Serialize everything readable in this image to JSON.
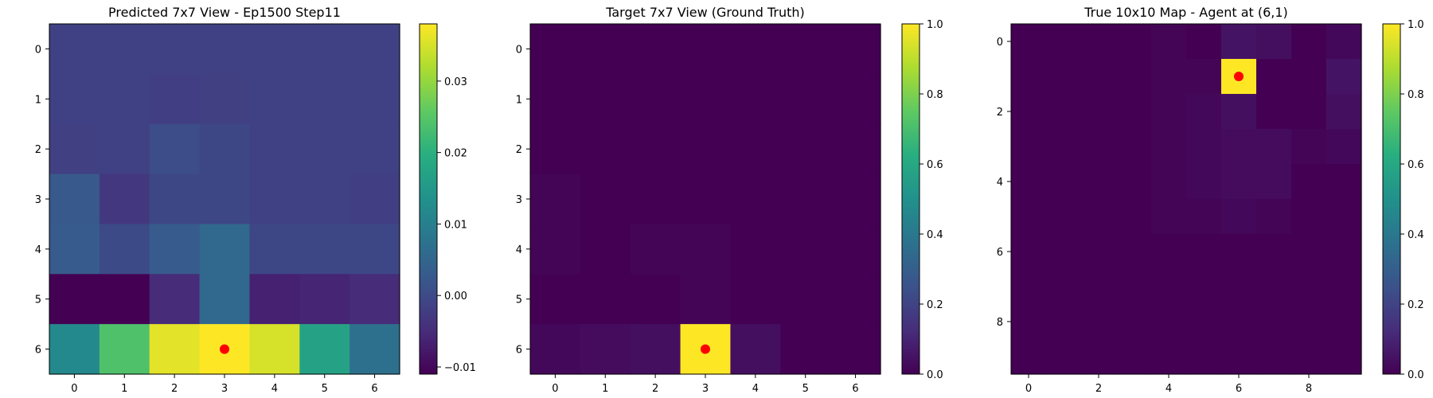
{
  "chart_data": [
    {
      "type": "heatmap",
      "title": "Predicted 7x7 View - Ep1500 Step11",
      "xlabel": "",
      "ylabel": "",
      "x_ticks": [
        "0",
        "1",
        "2",
        "3",
        "4",
        "5",
        "6"
      ],
      "y_ticks": [
        "0",
        "1",
        "2",
        "3",
        "4",
        "5",
        "6"
      ],
      "rows": 7,
      "cols": 7,
      "values": [
        [
          -0.0015,
          -0.0015,
          -0.0015,
          -0.0015,
          -0.0015,
          -0.0015,
          -0.0015
        ],
        [
          -0.0015,
          -0.0015,
          -0.002,
          -0.0018,
          -0.0015,
          -0.0015,
          -0.0015
        ],
        [
          -0.0018,
          -0.0015,
          0.0005,
          -0.0005,
          -0.0015,
          -0.0015,
          -0.0015
        ],
        [
          0.0025,
          -0.003,
          -0.0005,
          -0.0005,
          -0.0015,
          -0.0015,
          -0.002
        ],
        [
          0.003,
          0.0,
          0.003,
          0.0055,
          -0.0005,
          -0.0005,
          -0.0005
        ],
        [
          -0.011,
          -0.011,
          -0.005,
          0.0055,
          -0.0065,
          -0.006,
          -0.005
        ],
        [
          0.012,
          0.024,
          0.036,
          0.038,
          0.035,
          0.017,
          0.007
        ]
      ],
      "vmin": -0.011,
      "vmax": 0.038,
      "colorbar_ticks": [
        {
          "value": 0.03,
          "label": "0.03"
        },
        {
          "value": 0.02,
          "label": "0.02"
        },
        {
          "value": 0.01,
          "label": "0.01"
        },
        {
          "value": 0.0,
          "label": "0.00"
        },
        {
          "value": -0.01,
          "label": "−0.01"
        }
      ],
      "marker": {
        "x": 3,
        "y": 6,
        "color": "#ff0000"
      },
      "colormap": "viridis"
    },
    {
      "type": "heatmap",
      "title": "Target 7x7 View (Ground Truth)",
      "xlabel": "",
      "ylabel": "",
      "x_ticks": [
        "0",
        "1",
        "2",
        "3",
        "4",
        "5",
        "6"
      ],
      "y_ticks": [
        "0",
        "1",
        "2",
        "3",
        "4",
        "5",
        "6"
      ],
      "rows": 7,
      "cols": 7,
      "values": [
        [
          0.0,
          0.0,
          0.0,
          0.0,
          0.0,
          0.0,
          0.0
        ],
        [
          0.0,
          0.0,
          0.0,
          0.0,
          0.0,
          0.0,
          0.0
        ],
        [
          0.0,
          0.0,
          0.0,
          0.0,
          0.0,
          0.0,
          0.0
        ],
        [
          0.01,
          0.0,
          0.0,
          0.0,
          0.0,
          0.0,
          0.0
        ],
        [
          0.01,
          0.0,
          0.01,
          0.01,
          0.0,
          0.0,
          0.0
        ],
        [
          0.0,
          0.0,
          0.0,
          0.01,
          0.0,
          0.0,
          0.0
        ],
        [
          0.02,
          0.03,
          0.04,
          1.0,
          0.04,
          0.0,
          0.0
        ]
      ],
      "vmin": 0.0,
      "vmax": 1.0,
      "colorbar_ticks": [
        {
          "value": 1.0,
          "label": "1.0"
        },
        {
          "value": 0.8,
          "label": "0.8"
        },
        {
          "value": 0.6,
          "label": "0.6"
        },
        {
          "value": 0.4,
          "label": "0.4"
        },
        {
          "value": 0.2,
          "label": "0.2"
        },
        {
          "value": 0.0,
          "label": "0.0"
        }
      ],
      "marker": {
        "x": 3,
        "y": 6,
        "color": "#ff0000"
      },
      "colormap": "viridis"
    },
    {
      "type": "heatmap",
      "title": "True 10x10 Map - Agent at (6,1)",
      "xlabel": "",
      "ylabel": "",
      "x_ticks": [
        "0",
        "2",
        "4",
        "6",
        "8"
      ],
      "y_ticks": [
        "0",
        "2",
        "4",
        "6",
        "8"
      ],
      "rows": 10,
      "cols": 10,
      "values": [
        [
          0.0,
          0.0,
          0.0,
          0.0,
          0.01,
          0.0,
          0.05,
          0.04,
          0.0,
          0.02
        ],
        [
          0.0,
          0.0,
          0.0,
          0.0,
          0.01,
          0.01,
          1.0,
          0.0,
          0.0,
          0.05
        ],
        [
          0.0,
          0.0,
          0.0,
          0.0,
          0.01,
          0.02,
          0.04,
          0.0,
          0.0,
          0.04
        ],
        [
          0.0,
          0.0,
          0.0,
          0.0,
          0.01,
          0.02,
          0.03,
          0.03,
          0.01,
          0.02
        ],
        [
          0.0,
          0.0,
          0.0,
          0.0,
          0.01,
          0.02,
          0.03,
          0.03,
          0.0,
          0.0
        ],
        [
          0.0,
          0.0,
          0.0,
          0.0,
          0.01,
          0.01,
          0.02,
          0.01,
          0.0,
          0.0
        ],
        [
          0.0,
          0.0,
          0.0,
          0.0,
          0.0,
          0.0,
          0.0,
          0.0,
          0.0,
          0.0
        ],
        [
          0.0,
          0.0,
          0.0,
          0.0,
          0.0,
          0.0,
          0.0,
          0.0,
          0.0,
          0.0
        ],
        [
          0.0,
          0.0,
          0.0,
          0.0,
          0.0,
          0.0,
          0.0,
          0.0,
          0.0,
          0.0
        ],
        [
          0.0,
          0.0,
          0.0,
          0.0,
          0.0,
          0.0,
          0.0,
          0.0,
          0.0,
          0.0
        ]
      ],
      "vmin": 0.0,
      "vmax": 1.0,
      "colorbar_ticks": [
        {
          "value": 1.0,
          "label": "1.0"
        },
        {
          "value": 0.8,
          "label": "0.8"
        },
        {
          "value": 0.6,
          "label": "0.6"
        },
        {
          "value": 0.4,
          "label": "0.4"
        },
        {
          "value": 0.2,
          "label": "0.2"
        },
        {
          "value": 0.0,
          "label": "0.0"
        }
      ],
      "marker": {
        "x": 6,
        "y": 1,
        "color": "#ff0000"
      },
      "colormap": "viridis"
    }
  ]
}
